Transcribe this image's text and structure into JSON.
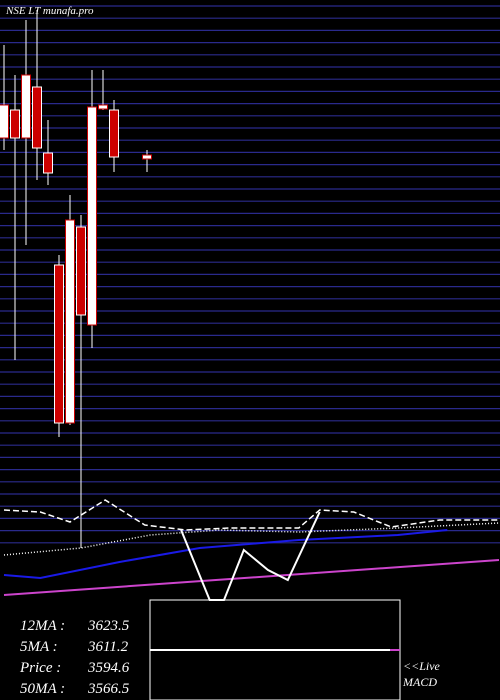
{
  "chart_data": {
    "type": "candlestick",
    "title": "NSE LT munafa.pro",
    "ylim": [
      3100,
      3750
    ],
    "xlim": [
      0,
      45
    ],
    "up_color": "#ffffff",
    "down_color": "#cc0000",
    "candles": {
      "x": [
        0,
        1,
        2,
        3,
        4,
        5,
        6,
        7,
        8,
        9,
        10,
        13
      ],
      "open": [
        3612,
        3640,
        3612,
        3663,
        3597,
        3485,
        3327,
        3523,
        3425,
        3641,
        3640,
        3591
      ],
      "high": [
        3705,
        3675,
        3730,
        3740,
        3630,
        3495,
        3555,
        3535,
        3680,
        3680,
        3650,
        3600
      ],
      "low": [
        3600,
        3390,
        3505,
        3570,
        3565,
        3313,
        3325,
        3202,
        3402,
        3640,
        3578,
        3578
      ],
      "close": [
        3645,
        3612,
        3675,
        3602,
        3577,
        3327,
        3530,
        3435,
        3643,
        3645,
        3593,
        3595
      ]
    },
    "series": [
      {
        "name": "5MA",
        "color": "#ffffff",
        "style": "dash",
        "x": [
          0,
          3.3,
          6,
          9.2,
          12.8,
          16.5,
          20.5,
          26.8,
          28.7,
          31.8,
          35.2,
          39.6,
          45
        ],
        "values": [
          3240,
          3238,
          3228,
          3250,
          3225,
          3220,
          3222,
          3222,
          3240,
          3238,
          3223,
          3230,
          3230
        ]
      },
      {
        "name": "12MA",
        "color": "#ffffff",
        "style": "dot",
        "x": [
          0,
          7,
          13.3,
          19.6,
          26.8,
          35.8,
          45
        ],
        "values": [
          3195,
          3202,
          3215,
          3220,
          3218,
          3222,
          3227
        ]
      },
      {
        "name": "50MA",
        "color": "#1a1ae6",
        "style": "solid",
        "x": [
          0,
          3.3,
          10.5,
          17.8,
          26.8,
          35.8,
          40.3
        ],
        "values": [
          3175,
          3172,
          3188,
          3202,
          3210,
          3215,
          3220
        ]
      },
      {
        "name": "200MA",
        "color": "#cc44cc",
        "style": "solid",
        "x": [
          0,
          45
        ],
        "values": [
          3155,
          3190
        ]
      },
      {
        "name": "MACD",
        "color": "#ffffff",
        "style": "solid",
        "x": [
          16.1,
          18.7,
          20,
          21.8,
          24,
          25.8,
          28.7
        ],
        "values": [
          3220,
          3150,
          3150,
          3200,
          3180,
          3170,
          3238
        ]
      }
    ],
    "stats": [
      {
        "label": "12MA :",
        "value": 3623.5
      },
      {
        "label": "5MA :",
        "value": 3611.2
      },
      {
        "label": "Price  :",
        "value": 3594.6
      },
      {
        "label": "50MA :",
        "value": 3566.5
      }
    ],
    "macd_label": [
      "<<Live",
      "MACD"
    ]
  }
}
